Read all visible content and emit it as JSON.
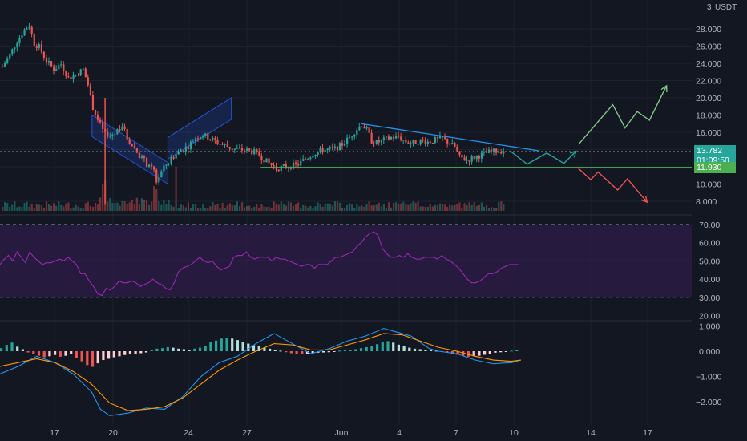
{
  "header": {
    "scale_mark": "3",
    "currency": "USDT"
  },
  "price_axis": {
    "ticks": [
      "28.000",
      "26.000",
      "24.000",
      "22.000",
      "20.000",
      "18.000",
      "16.000",
      "14.000",
      "12.000",
      "10.000",
      "8.000"
    ]
  },
  "price_tags": {
    "last": "13.782",
    "countdown": "01:09:50",
    "support": "11.930",
    "colors": {
      "last": "#26a69a",
      "support": "#4caf50"
    }
  },
  "rsi_axis": {
    "ticks": [
      "70.00",
      "60.00",
      "50.00",
      "40.00",
      "30.00",
      "20.00"
    ]
  },
  "macd_axis": {
    "ticks": [
      "1.000",
      "0.000",
      "−1.000",
      "−2.000"
    ]
  },
  "time_axis": {
    "labels": [
      "17",
      "20",
      "24",
      "27",
      "Jun",
      "4",
      "7",
      "10",
      "14",
      "17"
    ]
  },
  "colors": {
    "background": "#131722",
    "up": "#26a69a",
    "down": "#ef5350",
    "trend_line": "#2196f3",
    "support_line": "#4caf50",
    "channel": "#2962ff",
    "projection_up": "#81c784",
    "projection_down": "#ef5350",
    "projection_mid": "#26a69a",
    "rsi_line": "#9c27b0",
    "macd_line": "#2196f3",
    "signal_line": "#ff9800"
  },
  "chart_data": [
    {
      "type": "candlestick",
      "title": "",
      "y_range": [
        7,
        29.5
      ],
      "x_ticks": [
        "17",
        "20",
        "24",
        "27",
        "Jun",
        "4",
        "7",
        "10",
        "14",
        "17"
      ],
      "close_path": [
        [
          0,
          23.6
        ],
        [
          3,
          25
        ],
        [
          6,
          26.6
        ],
        [
          9,
          27.9
        ],
        [
          11,
          28.4
        ],
        [
          13,
          26.3
        ],
        [
          15,
          25.9
        ],
        [
          18,
          24.3
        ],
        [
          21,
          23.3
        ],
        [
          24,
          23.9
        ],
        [
          27,
          22.3
        ],
        [
          30,
          22.7
        ],
        [
          33,
          23.3
        ],
        [
          35,
          21.5
        ],
        [
          37,
          18.9
        ],
        [
          39,
          17.4
        ],
        [
          41,
          16.4
        ],
        [
          43,
          15.4
        ],
        [
          46,
          15.9
        ],
        [
          49,
          16.9
        ],
        [
          51,
          15.3
        ],
        [
          53,
          14.5
        ],
        [
          55,
          13.7
        ],
        [
          58,
          12.7
        ],
        [
          60,
          11.9
        ],
        [
          62,
          11.6
        ],
        [
          63,
          10.3
        ],
        [
          65,
          11.4
        ],
        [
          67,
          12.3
        ],
        [
          70,
          13.2
        ],
        [
          73,
          13.9
        ],
        [
          76,
          14.4
        ],
        [
          79,
          15.4
        ],
        [
          82,
          15.7
        ],
        [
          85,
          15.3
        ],
        [
          88,
          14.8
        ],
        [
          91,
          14.5
        ],
        [
          94,
          14.1
        ],
        [
          97,
          14
        ],
        [
          100,
          13.9
        ],
        [
          103,
          13.7
        ],
        [
          106,
          13.1
        ],
        [
          109,
          12.4
        ],
        [
          112,
          11.8
        ],
        [
          115,
          12
        ],
        [
          118,
          12.1
        ],
        [
          121,
          12.3
        ],
        [
          124,
          12.9
        ],
        [
          127,
          13.5
        ],
        [
          130,
          13.9
        ],
        [
          133,
          14
        ],
        [
          136,
          14.1
        ],
        [
          139,
          14.6
        ],
        [
          142,
          15.4
        ],
        [
          145,
          16.4
        ],
        [
          147,
          16.9
        ],
        [
          149,
          16.3
        ],
        [
          151,
          15
        ],
        [
          153,
          14.8
        ],
        [
          156,
          15.1
        ],
        [
          159,
          15.4
        ],
        [
          162,
          15.5
        ],
        [
          165,
          14.9
        ],
        [
          168,
          14.8
        ],
        [
          171,
          15
        ],
        [
          174,
          14.9
        ],
        [
          177,
          15.1
        ],
        [
          180,
          15.3
        ],
        [
          182,
          14.9
        ],
        [
          185,
          14.3
        ],
        [
          187,
          13.1
        ],
        [
          190,
          12.8
        ],
        [
          193,
          13.1
        ],
        [
          196,
          13.4
        ],
        [
          199,
          13.7
        ],
        [
          202,
          13.8
        ],
        [
          205,
          13.9
        ]
      ],
      "volume_bars": 206,
      "lines": {
        "support": 11.93,
        "last_price": 13.782,
        "trend": [
          [
            147,
            17
          ],
          [
            220,
            13.85
          ]
        ]
      },
      "channel": {
        "low_side": [
          [
            37,
            15.5
          ],
          [
            68,
            10.0
          ]
        ],
        "high_side": [
          [
            68,
            12.9
          ],
          [
            94,
            17.5
          ]
        ],
        "width": 2.5
      },
      "projections": {
        "mid": [
          [
            208,
            13.85
          ],
          [
            215,
            12.3
          ],
          [
            223,
            13.6
          ],
          [
            230,
            12.4
          ],
          [
            235,
            13.8
          ]
        ],
        "up": [
          [
            236,
            14.6
          ],
          [
            250,
            19.2
          ],
          [
            255,
            16.5
          ],
          [
            260,
            18.4
          ],
          [
            265,
            17.4
          ],
          [
            272,
            21.4
          ]
        ],
        "down": [
          [
            236,
            11.8
          ],
          [
            241,
            10.5
          ],
          [
            244,
            11.4
          ],
          [
            252,
            9.3
          ],
          [
            256,
            10.6
          ],
          [
            264,
            7.9
          ]
        ]
      }
    },
    {
      "type": "line",
      "title": "",
      "y_range": [
        18,
        78
      ],
      "band": [
        30,
        70
      ],
      "values": [
        48,
        51,
        53,
        50,
        55,
        52,
        49,
        55,
        52,
        50,
        48,
        49,
        49,
        50,
        51,
        50,
        52,
        50,
        48,
        43,
        43,
        39,
        36,
        32,
        31,
        35,
        34,
        36,
        39,
        38,
        38,
        39,
        38,
        36,
        37,
        38,
        40,
        38,
        37,
        35,
        34,
        38,
        44,
        46,
        47,
        48,
        50,
        52,
        50,
        49,
        50,
        47,
        45,
        46,
        47,
        52,
        53,
        53,
        55,
        52,
        51,
        52,
        52,
        52,
        50,
        52,
        51,
        51,
        50,
        49,
        48,
        47,
        48,
        48,
        46,
        48,
        48,
        48,
        50,
        52,
        52,
        53,
        54,
        55,
        58,
        60,
        63,
        65,
        66,
        64,
        57,
        54,
        52,
        52,
        53,
        52,
        54,
        52,
        51,
        51,
        52,
        52,
        52,
        51,
        53,
        51,
        50,
        48,
        46,
        43,
        40,
        38,
        38,
        39,
        41,
        43,
        43,
        44,
        46,
        47,
        48,
        48,
        48
      ]
    },
    {
      "type": "bar",
      "title": "",
      "y_range": [
        -2.7,
        1.1
      ],
      "histogram": [
        0.12,
        0.25,
        0.34,
        0.18,
        0.08,
        -0.05,
        -0.12,
        -0.18,
        -0.24,
        -0.2,
        -0.15,
        -0.22,
        -0.18,
        -0.12,
        -0.28,
        -0.4,
        -0.55,
        -0.62,
        -0.48,
        -0.35,
        -0.3,
        -0.24,
        -0.2,
        -0.15,
        -0.12,
        -0.1,
        -0.08,
        -0.05,
        0.05,
        0.1,
        0.12,
        0.16,
        0.14,
        0.1,
        0.08,
        0.06,
        0.1,
        0.14,
        0.22,
        0.36,
        0.42,
        0.5,
        0.54,
        0.5,
        0.44,
        0.36,
        0.3,
        0.24,
        0.2,
        0.14,
        0.1,
        0.06,
        0.02,
        -0.04,
        -0.08,
        -0.1,
        -0.12,
        -0.1,
        -0.08,
        -0.06,
        -0.05,
        -0.04,
        -0.02,
        0.02,
        0.04,
        0.06,
        0.08,
        0.12,
        0.16,
        0.22,
        0.28,
        0.36,
        0.4,
        0.34,
        0.26,
        0.2,
        0.14,
        0.1,
        0.08,
        0.06,
        0.04,
        0.02,
        -0.02,
        -0.06,
        -0.1,
        -0.14,
        -0.18,
        -0.22,
        -0.2,
        -0.18,
        -0.14,
        -0.1,
        -0.06,
        -0.04,
        -0.02,
        0.02,
        0.04
      ],
      "macd": [
        [
          0,
          -0.9
        ],
        [
          10,
          -0.6
        ],
        [
          20,
          -0.2
        ],
        [
          30,
          -0.45
        ],
        [
          40,
          -0.9
        ],
        [
          50,
          -1.6
        ],
        [
          55,
          -2.3
        ],
        [
          60,
          -2.55
        ],
        [
          70,
          -2.45
        ],
        [
          80,
          -2.25
        ],
        [
          90,
          -2.3
        ],
        [
          100,
          -1.8
        ],
        [
          110,
          -1.0
        ],
        [
          120,
          -0.45
        ],
        [
          130,
          -0.2
        ],
        [
          140,
          0.3
        ],
        [
          145,
          0.5
        ],
        [
          150,
          0.7
        ],
        [
          160,
          0.3
        ],
        [
          170,
          -0.1
        ],
        [
          180,
          0.1
        ],
        [
          190,
          0.4
        ],
        [
          200,
          0.6
        ],
        [
          210,
          0.9
        ],
        [
          215,
          0.8
        ],
        [
          225,
          0.6
        ],
        [
          235,
          0.1
        ],
        [
          240,
          0.0
        ],
        [
          250,
          -0.1
        ],
        [
          260,
          -0.35
        ],
        [
          270,
          -0.5
        ],
        [
          280,
          -0.45
        ],
        [
          285,
          -0.35
        ]
      ],
      "signal": [
        [
          0,
          -0.6
        ],
        [
          10,
          -0.45
        ],
        [
          20,
          -0.3
        ],
        [
          30,
          -0.45
        ],
        [
          40,
          -0.8
        ],
        [
          50,
          -1.3
        ],
        [
          60,
          -2.05
        ],
        [
          70,
          -2.35
        ],
        [
          80,
          -2.3
        ],
        [
          90,
          -2.2
        ],
        [
          100,
          -1.85
        ],
        [
          110,
          -1.3
        ],
        [
          120,
          -0.75
        ],
        [
          130,
          -0.35
        ],
        [
          140,
          0.0
        ],
        [
          150,
          0.3
        ],
        [
          160,
          0.25
        ],
        [
          170,
          0.05
        ],
        [
          180,
          0.05
        ],
        [
          190,
          0.25
        ],
        [
          200,
          0.45
        ],
        [
          210,
          0.7
        ],
        [
          220,
          0.65
        ],
        [
          230,
          0.4
        ],
        [
          240,
          0.15
        ],
        [
          250,
          0.0
        ],
        [
          260,
          -0.2
        ],
        [
          270,
          -0.35
        ],
        [
          280,
          -0.4
        ],
        [
          285,
          -0.35
        ]
      ]
    }
  ]
}
